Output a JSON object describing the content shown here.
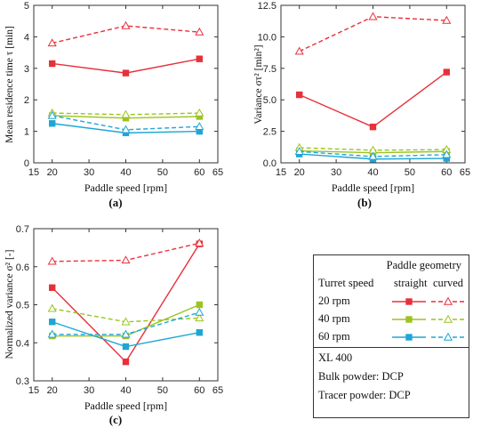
{
  "series_meta": [
    {
      "speed": "20 rpm",
      "color": "#e8303a"
    },
    {
      "speed": "40 rpm",
      "color": "#9bc41e"
    },
    {
      "speed": "60 rpm",
      "color": "#1fa6d6"
    }
  ],
  "chart_data": [
    {
      "type": "line",
      "panel_label": "(a)",
      "xlabel": "Paddle speed [rpm]",
      "ylabel": "Mean residence time τ [min]",
      "x": [
        20,
        40,
        60
      ],
      "xlim": [
        15,
        65
      ],
      "ylim": [
        0,
        5
      ],
      "xticks": [
        "15",
        "20",
        "30",
        "40",
        "50",
        "60",
        "65"
      ],
      "yticks": [
        "0",
        "1",
        "2",
        "3",
        "4",
        "5"
      ],
      "series": [
        {
          "turret": "20 rpm",
          "geometry": "straight",
          "values": [
            3.15,
            2.85,
            3.3
          ]
        },
        {
          "turret": "20 rpm",
          "geometry": "curved",
          "values": [
            3.8,
            4.35,
            4.15
          ]
        },
        {
          "turret": "40 rpm",
          "geometry": "straight",
          "values": [
            1.5,
            1.42,
            1.47
          ]
        },
        {
          "turret": "40 rpm",
          "geometry": "curved",
          "values": [
            1.58,
            1.53,
            1.58
          ]
        },
        {
          "turret": "60 rpm",
          "geometry": "straight",
          "values": [
            1.25,
            0.95,
            1.0
          ]
        },
        {
          "turret": "60 rpm",
          "geometry": "curved",
          "values": [
            1.5,
            1.05,
            1.15
          ]
        }
      ]
    },
    {
      "type": "line",
      "panel_label": "(b)",
      "xlabel": "Paddle speed [rpm]",
      "ylabel": "Variance στ² [min²]",
      "x": [
        20,
        40,
        60
      ],
      "xlim": [
        15,
        65
      ],
      "ylim": [
        0,
        12.5
      ],
      "xticks": [
        "15",
        "20",
        "30",
        "40",
        "50",
        "60",
        "65"
      ],
      "yticks": [
        "0.0",
        "2.5",
        "5.0",
        "7.5",
        "10.0",
        "12.5"
      ],
      "series": [
        {
          "turret": "20 rpm",
          "geometry": "straight",
          "values": [
            5.4,
            2.85,
            7.2
          ]
        },
        {
          "turret": "20 rpm",
          "geometry": "curved",
          "values": [
            8.85,
            11.6,
            11.3
          ]
        },
        {
          "turret": "40 rpm",
          "geometry": "straight",
          "values": [
            0.95,
            0.8,
            0.9
          ]
        },
        {
          "turret": "40 rpm",
          "geometry": "curved",
          "values": [
            1.2,
            1.0,
            1.05
          ]
        },
        {
          "turret": "60 rpm",
          "geometry": "straight",
          "values": [
            0.7,
            0.3,
            0.35
          ]
        },
        {
          "turret": "60 rpm",
          "geometry": "curved",
          "values": [
            0.9,
            0.5,
            0.65
          ]
        }
      ]
    },
    {
      "type": "line",
      "panel_label": "(c)",
      "xlabel": "Paddle speed [rpm]",
      "ylabel": "Normalized variance σ² [-]",
      "x": [
        20,
        40,
        60
      ],
      "xlim": [
        15,
        65
      ],
      "ylim": [
        0.3,
        0.7
      ],
      "xticks": [
        "15",
        "20",
        "30",
        "40",
        "50",
        "60",
        "65"
      ],
      "yticks": [
        "0.3",
        "0.4",
        "0.5",
        "0.6",
        "0.7"
      ],
      "series": [
        {
          "turret": "20 rpm",
          "geometry": "straight",
          "values": [
            0.545,
            0.35,
            0.66
          ]
        },
        {
          "turret": "20 rpm",
          "geometry": "curved",
          "values": [
            0.614,
            0.617,
            0.662
          ]
        },
        {
          "turret": "40 rpm",
          "geometry": "straight",
          "values": [
            0.418,
            0.418,
            0.5
          ]
        },
        {
          "turret": "40 rpm",
          "geometry": "curved",
          "values": [
            0.49,
            0.455,
            0.465
          ]
        },
        {
          "turret": "60 rpm",
          "geometry": "straight",
          "values": [
            0.455,
            0.39,
            0.427
          ]
        },
        {
          "turret": "60 rpm",
          "geometry": "curved",
          "values": [
            0.422,
            0.422,
            0.48
          ]
        }
      ]
    }
  ],
  "legend": {
    "header": "Paddle geometry",
    "col_turret": "Turret speed",
    "col_straight": "straight",
    "col_curved": "curved",
    "rows": [
      "20 rpm",
      "40 rpm",
      "60 rpm"
    ],
    "notes": [
      "XL 400",
      "Bulk powder: DCP",
      "Tracer powder: DCP"
    ]
  }
}
